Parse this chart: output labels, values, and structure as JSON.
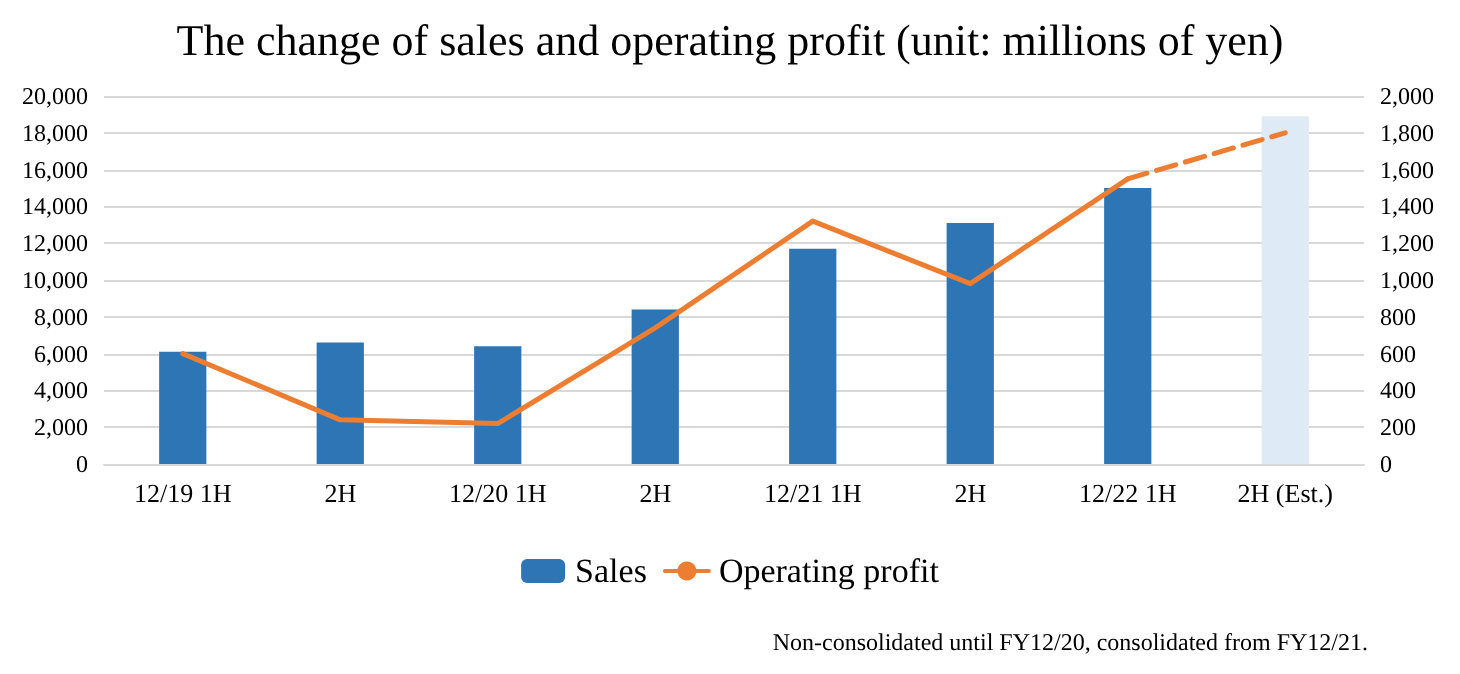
{
  "chart_data": {
    "type": "bar",
    "title": "The change of sales and operating profit (unit: millions of yen)",
    "categories": [
      "12/19 1H",
      "2H",
      "12/20 1H",
      "2H",
      "12/21 1H",
      "2H",
      "12/22 1H",
      "2H (Est.)"
    ],
    "series": [
      {
        "name": "Sales",
        "color": "#2e75b6",
        "colors": [
          "#2e75b6",
          "#2e75b6",
          "#2e75b6",
          "#2e75b6",
          "#2e75b6",
          "#2e75b6",
          "#2e75b6",
          "#deebf7"
        ],
        "values": [
          6100,
          6600,
          6400,
          8400,
          11700,
          13100,
          15000,
          18900
        ]
      },
      {
        "name": "Operating profit",
        "type": "line",
        "axis": "y2",
        "color": "#ed7d31",
        "line_style": "solid",
        "values": [
          600,
          240,
          220,
          740,
          1320,
          980,
          1550,
          null
        ]
      },
      {
        "type": "line",
        "axis": "y2",
        "color": "#ed7d31",
        "line_style": "dashed",
        "values": [
          null,
          null,
          null,
          null,
          null,
          null,
          1550,
          1800
        ]
      }
    ],
    "ylim": [
      0,
      20000
    ],
    "yticks": [
      0,
      {
        "value": 2000,
        "label": "2,000"
      },
      {
        "value": 4000,
        "label": "4,000"
      },
      {
        "value": 6000,
        "label": "6,000"
      },
      {
        "value": 8000,
        "label": "8,000"
      },
      {
        "value": 10000,
        "label": "10,000"
      },
      {
        "value": 12000,
        "label": "12,000"
      },
      {
        "value": 14000,
        "label": "14,000"
      },
      {
        "value": 16000,
        "label": "16,000"
      },
      {
        "value": 18000,
        "label": "18,000"
      },
      {
        "value": 20000,
        "label": "20,000"
      }
    ],
    "y2lim": [
      0,
      2000
    ],
    "y2ticks": [
      0,
      200,
      400,
      600,
      800,
      {
        "value": 1000,
        "label": "1,000"
      },
      {
        "value": 1200,
        "label": "1,200"
      },
      {
        "value": 1400,
        "label": "1,400"
      },
      {
        "value": 1600,
        "label": "1,600"
      },
      {
        "value": 1800,
        "label": "1,800"
      },
      {
        "value": 2000,
        "label": "2,000"
      }
    ],
    "grid": "y",
    "legend": "bottom",
    "marker": "none",
    "annotations": [
      "Non-consolidated until FY12/20, consolidated from FY12/21."
    ]
  }
}
